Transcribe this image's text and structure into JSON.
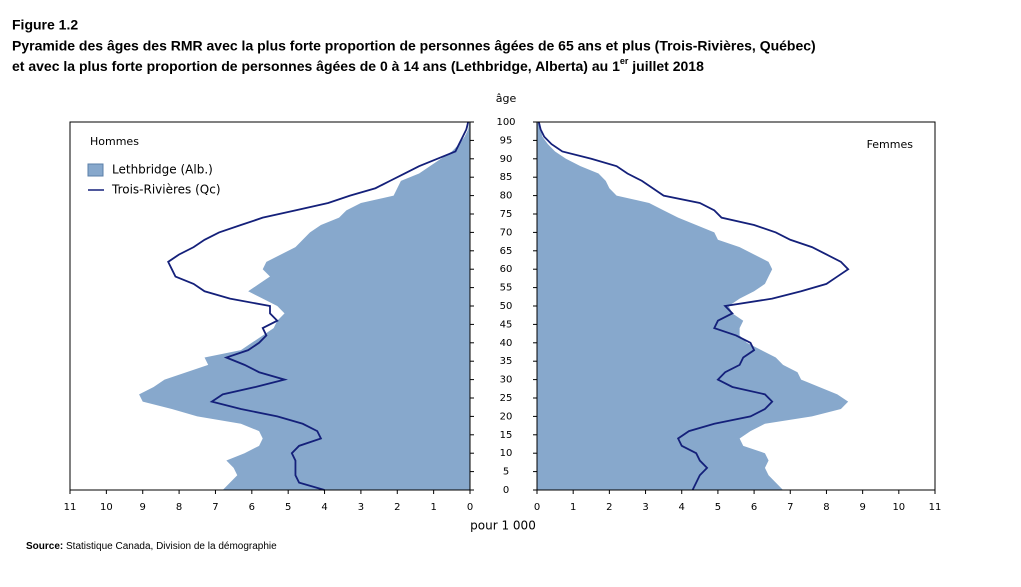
{
  "chart_data": {
    "type": "pyramid",
    "title": "Figure 1.2",
    "subtitle": {
      "line1": "Pyramide des âges des RMR avec la plus forte proportion de personnes âgées de 65 ans et plus (Trois-Rivières, Québec)",
      "line2_before": "et avec la plus forte proportion de personnes âgées de 0 à 14 ans (Lethbridge, Alberta) au 1",
      "superscript": "er",
      "line2_after": " juillet 2018"
    },
    "left_label": "Hommes",
    "right_label": "Femmes",
    "ylabel": "âge",
    "xlabel": "pour 1 000",
    "source_label": "Source:",
    "source": "Statistique Canada, Division de la démographie",
    "legend": "upper left",
    "ylim": [
      0,
      100
    ],
    "yticks": [
      0,
      5,
      10,
      15,
      20,
      25,
      30,
      35,
      40,
      45,
      50,
      55,
      60,
      65,
      70,
      75,
      80,
      85,
      90,
      95,
      100
    ],
    "xlim": [
      0,
      11
    ],
    "xticks": [
      0,
      1,
      2,
      3,
      4,
      5,
      6,
      7,
      8,
      9,
      10,
      11
    ],
    "ages": [
      0,
      2,
      4,
      6,
      8,
      10,
      12,
      14,
      16,
      18,
      20,
      22,
      24,
      26,
      28,
      30,
      32,
      34,
      36,
      38,
      40,
      42,
      44,
      46,
      48,
      50,
      52,
      54,
      56,
      58,
      60,
      62,
      64,
      66,
      68,
      70,
      72,
      74,
      76,
      78,
      80,
      82,
      84,
      86,
      88,
      90,
      92,
      94,
      96,
      98,
      100
    ],
    "series": [
      {
        "name": "Lethbridge (Alb.)",
        "style": "area",
        "color": "#87a8cc",
        "left_values": [
          6.8,
          6.6,
          6.4,
          6.5,
          6.7,
          6.2,
          5.8,
          5.7,
          5.8,
          6.3,
          7.5,
          8.2,
          9.0,
          9.1,
          8.7,
          8.4,
          7.8,
          7.2,
          7.3,
          6.3,
          6.0,
          5.7,
          5.4,
          5.3,
          5.1,
          5.3,
          5.7,
          6.1,
          5.8,
          5.5,
          5.7,
          5.6,
          5.2,
          4.8,
          4.6,
          4.4,
          4.1,
          3.6,
          3.4,
          3.0,
          2.1,
          2.0,
          1.9,
          1.4,
          1.1,
          0.8,
          0.5,
          0.3,
          0.15,
          0.05,
          0.02
        ],
        "right_values": [
          6.8,
          6.6,
          6.4,
          6.3,
          6.4,
          6.3,
          5.7,
          5.6,
          5.9,
          6.3,
          7.6,
          8.4,
          8.6,
          8.3,
          7.8,
          7.3,
          7.2,
          6.8,
          6.6,
          6.2,
          5.8,
          5.6,
          5.6,
          5.7,
          5.4,
          5.3,
          5.6,
          6.0,
          6.3,
          6.4,
          6.5,
          6.4,
          6.0,
          5.6,
          5.0,
          4.9,
          4.4,
          3.9,
          3.5,
          3.1,
          2.2,
          2.0,
          1.9,
          1.7,
          1.2,
          0.8,
          0.5,
          0.3,
          0.15,
          0.1,
          0.05
        ]
      },
      {
        "name": "Trois-Rivières (Qc)",
        "style": "line",
        "color": "#14207a",
        "left_values": [
          4.0,
          4.7,
          4.8,
          4.8,
          4.8,
          4.9,
          4.7,
          4.1,
          4.2,
          4.6,
          5.3,
          6.3,
          7.1,
          6.8,
          5.9,
          5.1,
          5.8,
          6.2,
          6.7,
          6.1,
          5.8,
          5.6,
          5.7,
          5.3,
          5.5,
          5.5,
          6.6,
          7.3,
          7.6,
          8.1,
          8.2,
          8.3,
          8.0,
          7.6,
          7.3,
          6.9,
          6.3,
          5.7,
          4.8,
          3.9,
          3.3,
          2.6,
          2.2,
          1.8,
          1.4,
          0.9,
          0.4,
          0.3,
          0.2,
          0.1,
          0.05
        ],
        "right_values": [
          4.3,
          4.4,
          4.5,
          4.7,
          4.5,
          4.4,
          4.0,
          3.9,
          4.2,
          4.9,
          5.9,
          6.3,
          6.5,
          6.3,
          5.4,
          5.0,
          5.2,
          5.6,
          5.7,
          6.0,
          5.9,
          5.5,
          4.9,
          5.0,
          5.4,
          5.2,
          6.5,
          7.3,
          8.0,
          8.3,
          8.6,
          8.4,
          8.0,
          7.6,
          7.0,
          6.6,
          6.0,
          5.1,
          4.9,
          4.5,
          3.5,
          3.2,
          2.9,
          2.5,
          2.2,
          1.5,
          0.7,
          0.4,
          0.2,
          0.1,
          0.05
        ]
      }
    ]
  }
}
